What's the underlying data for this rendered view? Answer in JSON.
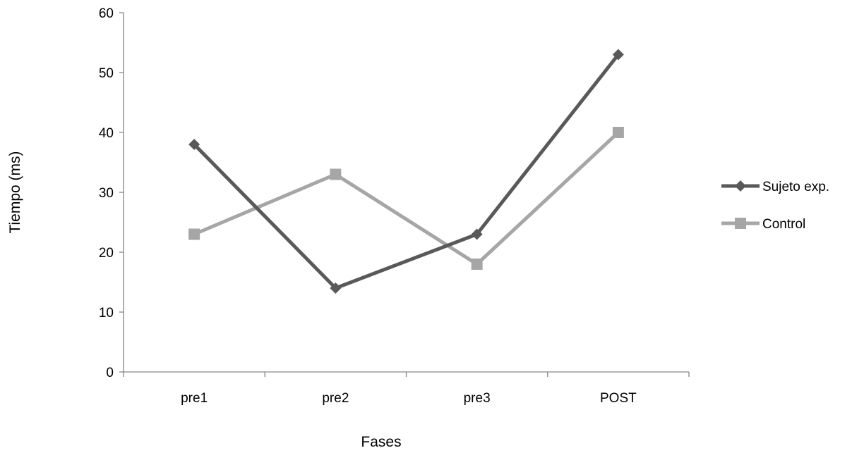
{
  "chart_data": {
    "type": "line",
    "title": "",
    "xlabel": "Fases",
    "ylabel": "Tiempo (ms)",
    "categories": [
      "pre1",
      "pre2",
      "pre3",
      "POST"
    ],
    "ylim": [
      0,
      60
    ],
    "yticks": [
      0,
      10,
      20,
      30,
      40,
      50,
      60
    ],
    "grid": false,
    "legend_position": "right",
    "series": [
      {
        "name": "Sujeto exp.",
        "values": [
          38,
          14,
          23,
          53
        ],
        "color": "#595959",
        "marker": "diamond"
      },
      {
        "name": "Control",
        "values": [
          23,
          33,
          18,
          40
        ],
        "color": "#a6a6a6",
        "marker": "square"
      }
    ]
  }
}
